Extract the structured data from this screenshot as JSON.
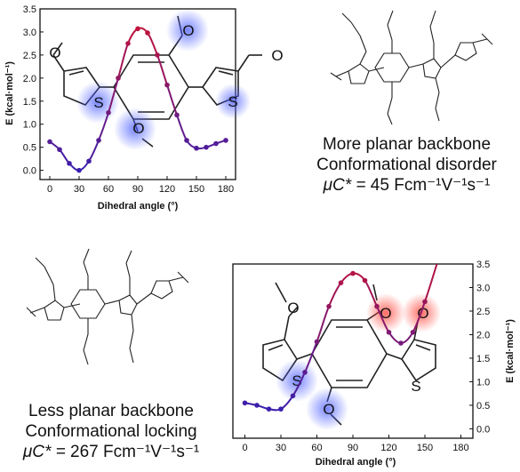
{
  "charts": [
    {
      "ylabel": "E (kcal·mol⁻¹)",
      "xlabel": "Dihedral angle (°)",
      "xticks": [
        "0",
        "30",
        "60",
        "90",
        "120",
        "150",
        "180"
      ],
      "yticks": [
        "0.0",
        "0.5",
        "1.0",
        "1.5",
        "2.0",
        "2.5",
        "3.0",
        "3.5"
      ],
      "oxygen_labels": [
        "O",
        "O",
        "O",
        "O"
      ],
      "sulfur_labels": [
        "S",
        "S"
      ]
    },
    {
      "ylabel": "E (kcal·mol⁻¹)",
      "xlabel": "Dihedral angle (°)",
      "xticks": [
        "0",
        "30",
        "60",
        "90",
        "120",
        "150",
        "180"
      ],
      "yticks": [
        "0.0",
        "0.5",
        "1.0",
        "1.5",
        "2.0",
        "2.5",
        "3.0",
        "3.5"
      ],
      "oxygen_labels": [
        "O",
        "O",
        "O",
        "O"
      ],
      "sulfur_labels": [
        "S",
        "S"
      ]
    }
  ],
  "captions": {
    "top": {
      "line1": "More planar backbone",
      "line2": "Conformational disorder",
      "mobility_prefix": "μC* = ",
      "mobility_value": "45 Fcm⁻¹V⁻¹s⁻¹"
    },
    "bottom": {
      "line1": "Less planar backbone",
      "line2": "Conformational locking",
      "mobility_prefix": "μC* = ",
      "mobility_value": "267 Fcm⁻¹V⁻¹s⁻¹"
    }
  },
  "colors": {
    "high_energy": "#c0143c",
    "low_energy": "#3a1fae",
    "o_glow_blue": "#4a5cff",
    "o_glow_red": "#ff3b30"
  },
  "chart_data": [
    {
      "type": "line",
      "x": [
        0,
        10,
        20,
        30,
        40,
        50,
        60,
        70,
        80,
        90,
        100,
        110,
        120,
        130,
        140,
        150,
        160,
        170,
        180
      ],
      "y": [
        0.62,
        0.45,
        0.15,
        0.0,
        0.2,
        0.65,
        1.25,
        2.0,
        2.75,
        3.07,
        2.98,
        2.5,
        1.85,
        1.2,
        0.65,
        0.48,
        0.5,
        0.58,
        0.65
      ],
      "xlim": [
        -10,
        190
      ],
      "ylim": [
        -0.2,
        3.5
      ],
      "xlabel": "Dihedral angle (°)",
      "ylabel": "E (kcal·mol⁻¹)",
      "gradient": "blue at low energy, red at high energy",
      "grid": false,
      "y_axis_side": "left"
    },
    {
      "type": "line",
      "x": [
        0,
        10,
        20,
        30,
        40,
        50,
        60,
        70,
        80,
        90,
        100,
        110,
        120,
        130,
        140,
        150,
        160
      ],
      "y": [
        0.55,
        0.5,
        0.42,
        0.42,
        0.7,
        1.2,
        1.85,
        2.6,
        3.1,
        3.3,
        3.15,
        2.6,
        2.05,
        1.82,
        2.05,
        2.7,
        3.55
      ],
      "xlim": [
        -10,
        190
      ],
      "ylim": [
        -0.2,
        3.5
      ],
      "xlabel": "Dihedral angle (°)",
      "ylabel": "E (kcal·mol⁻¹)",
      "gradient": "blue at low energy, red at high energy",
      "grid": false,
      "y_axis_side": "right"
    }
  ]
}
